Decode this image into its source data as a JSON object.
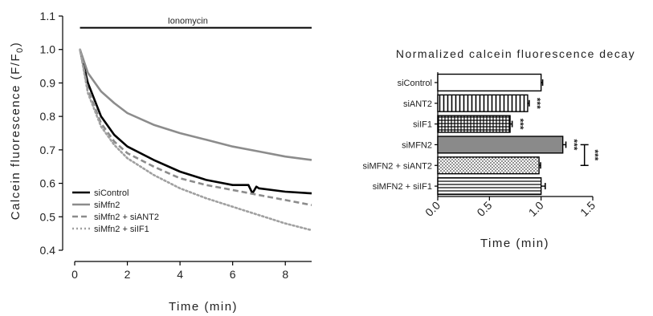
{
  "chart_data": [
    {
      "type": "line",
      "xlabel": "Time (min)",
      "ylabel": "Calcein fluorescence (F/F",
      "ylabel_sub": "0",
      "ylabel_end": ")",
      "xlim": [
        0,
        9
      ],
      "ylim": [
        0.4,
        1.1
      ],
      "xticks": [
        0,
        2,
        4,
        6,
        8
      ],
      "yticks": [
        "0.4",
        "0.5",
        "0.6",
        "0.7",
        "0.8",
        "0.9",
        "1.0",
        "1.1"
      ],
      "annotation": "Ionomycin",
      "annotation_range": [
        0.2,
        9
      ],
      "legend_position": "bottom-left",
      "series": [
        {
          "name": "siControl",
          "color": "#000000",
          "dash": "solid",
          "x": [
            0.2,
            0.5,
            1,
            1.5,
            2,
            3,
            4,
            5,
            6,
            6.6,
            6.75,
            6.9,
            7,
            8,
            9
          ],
          "y": [
            1.0,
            0.9,
            0.8,
            0.745,
            0.71,
            0.67,
            0.635,
            0.61,
            0.595,
            0.595,
            0.57,
            0.59,
            0.585,
            0.575,
            0.57
          ]
        },
        {
          "name": "siMfn2",
          "color": "#8c8c8c",
          "dash": "solid",
          "x": [
            0.2,
            0.5,
            1,
            1.5,
            2,
            3,
            4,
            5,
            6,
            7,
            8,
            9
          ],
          "y": [
            1.0,
            0.93,
            0.875,
            0.84,
            0.81,
            0.775,
            0.75,
            0.73,
            0.71,
            0.695,
            0.68,
            0.67
          ]
        },
        {
          "name": "siMfn2 + siANT2",
          "color": "#8c8c8c",
          "dash": "dashed",
          "x": [
            0.2,
            0.5,
            1,
            1.5,
            2,
            3,
            4,
            5,
            6,
            7,
            8,
            9
          ],
          "y": [
            1.0,
            0.88,
            0.78,
            0.725,
            0.69,
            0.65,
            0.615,
            0.595,
            0.58,
            0.565,
            0.55,
            0.535
          ]
        },
        {
          "name": "siMfn2 + siIF1",
          "color": "#a0a0a0",
          "dash": "dotted",
          "x": [
            0.2,
            0.5,
            1,
            1.5,
            2,
            3,
            4,
            5,
            6,
            7,
            8,
            9
          ],
          "y": [
            1.0,
            0.87,
            0.77,
            0.715,
            0.675,
            0.625,
            0.585,
            0.555,
            0.53,
            0.505,
            0.48,
            0.46
          ]
        }
      ]
    },
    {
      "type": "bar",
      "orientation": "horizontal",
      "title": "Normalized calcein fluorescence decay",
      "xlabel": "Time (min)",
      "xlim": [
        0,
        1.5
      ],
      "xticks": [
        "0.0",
        "0.5",
        "1.0",
        "1.5"
      ],
      "categories": [
        "siControl",
        "siANT2",
        "siIF1",
        "siMFN2",
        "siMFN2 + siANT2",
        "siMFN2 + siIF1"
      ],
      "values": [
        1.0,
        0.87,
        0.7,
        1.21,
        0.98,
        1.0
      ],
      "errors": [
        0.015,
        0.015,
        0.02,
        0.03,
        0.015,
        0.04
      ],
      "patterns": [
        "white",
        "vertical-lines",
        "grid",
        "gray",
        "dots",
        "horizontal-lines"
      ],
      "significance": [
        "",
        "***",
        "***",
        "***",
        "",
        ""
      ],
      "bracket_label": "***",
      "bracket_between": [
        "siMFN2",
        "siMFN2 + siANT2"
      ]
    }
  ]
}
